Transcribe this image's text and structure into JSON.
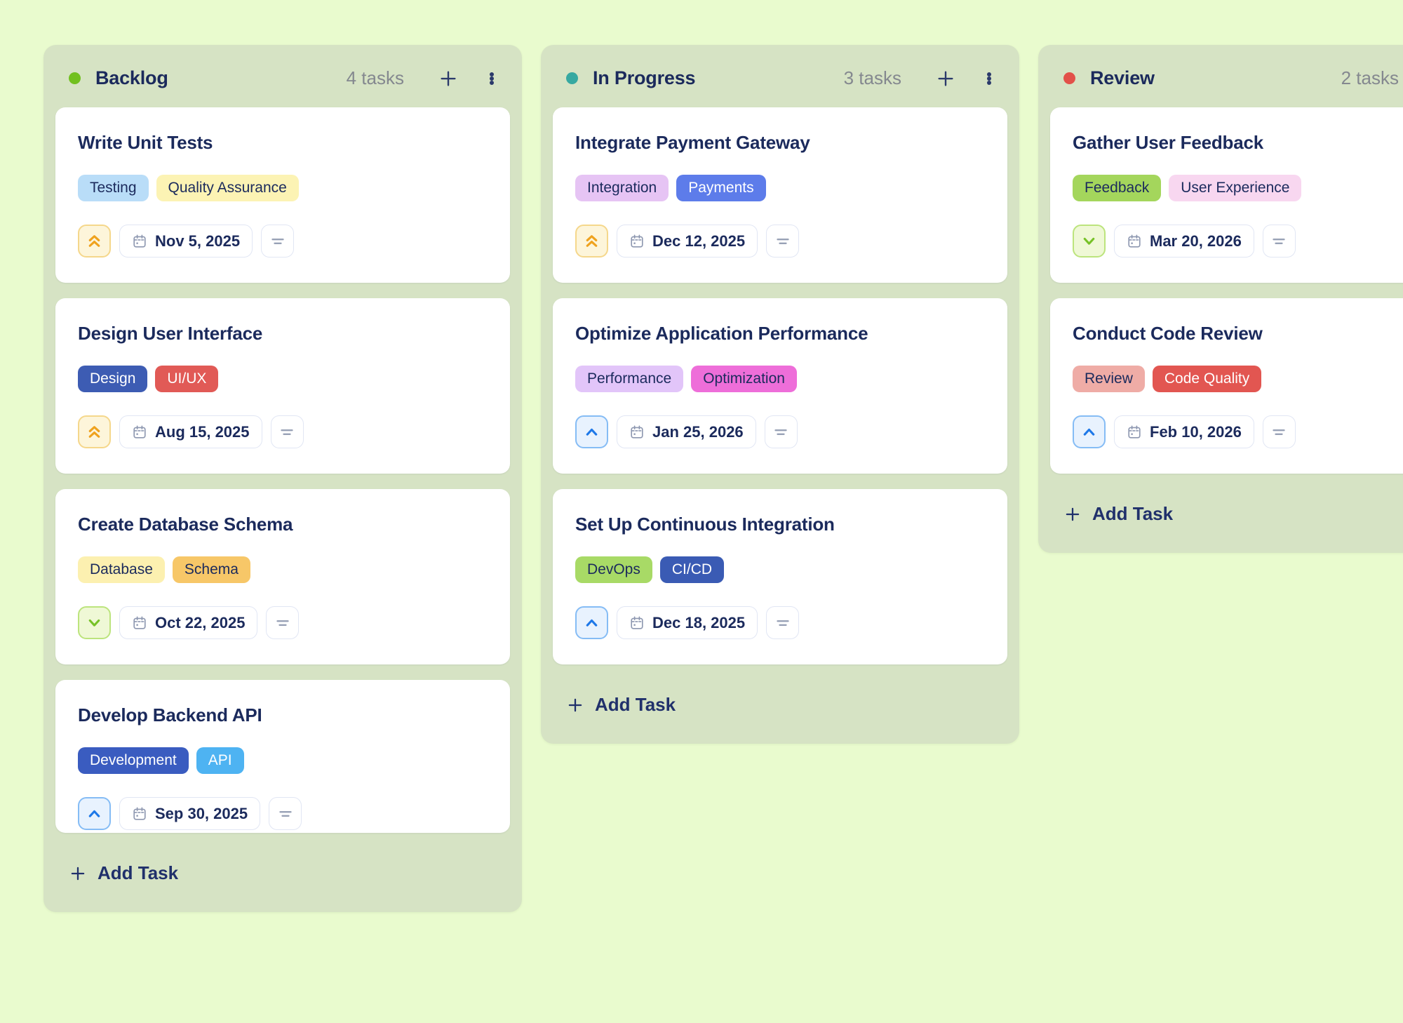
{
  "board": {
    "background": "#e9fbce",
    "column_background": "#d6e3c4",
    "text_color": "#1b2a5c",
    "count_text_color": "#84888f",
    "columns": [
      {
        "name": "Backlog",
        "count_label": "4 tasks",
        "dot_color": "#71c01f",
        "add_task_label": "Add Task",
        "tasks": [
          {
            "title": "Write Unit Tests",
            "tags": [
              {
                "label": "Testing",
                "bg": "#b9ddf8",
                "fg": "#1b2a5c"
              },
              {
                "label": "Quality Assurance",
                "bg": "#fcf3b4",
                "fg": "#1b2a5c"
              }
            ],
            "priority": "high",
            "due_date": "Nov 5, 2025"
          },
          {
            "title": "Design User Interface",
            "tags": [
              {
                "label": "Design",
                "bg": "#3d5cb3",
                "fg": "#ffffff"
              },
              {
                "label": "UI/UX",
                "bg": "#e15a56",
                "fg": "#ffffff"
              }
            ],
            "priority": "high",
            "due_date": "Aug 15, 2025"
          },
          {
            "title": "Create Database Schema",
            "tags": [
              {
                "label": "Database",
                "bg": "#fcf0b0",
                "fg": "#1b2a5c"
              },
              {
                "label": "Schema",
                "bg": "#f7c768",
                "fg": "#1b2a5c"
              }
            ],
            "priority": "low",
            "due_date": "Oct 22, 2025"
          },
          {
            "title": "Develop Backend API",
            "tags": [
              {
                "label": "Development",
                "bg": "#3a5cc0",
                "fg": "#ffffff"
              },
              {
                "label": "API",
                "bg": "#4eb3f2",
                "fg": "#ffffff"
              }
            ],
            "priority": "medium",
            "due_date": "Sep 30, 2025"
          }
        ]
      },
      {
        "name": "In Progress",
        "count_label": "3 tasks",
        "dot_color": "#37a9a1",
        "add_task_label": "Add Task",
        "tasks": [
          {
            "title": "Integrate Payment Gateway",
            "tags": [
              {
                "label": "Integration",
                "bg": "#e6c4f4",
                "fg": "#1b2a5c"
              },
              {
                "label": "Payments",
                "bg": "#5d7cea",
                "fg": "#ffffff"
              }
            ],
            "priority": "high",
            "due_date": "Dec 12, 2025"
          },
          {
            "title": "Optimize Application Performance",
            "tags": [
              {
                "label": "Performance",
                "bg": "#e2c5f9",
                "fg": "#1b2a5c"
              },
              {
                "label": "Optimization",
                "bg": "#ee6ed9",
                "fg": "#1b2a5c"
              }
            ],
            "priority": "medium",
            "due_date": "Jan 25, 2026"
          },
          {
            "title": "Set Up Continuous Integration",
            "tags": [
              {
                "label": "DevOps",
                "bg": "#a8da66",
                "fg": "#1b2a5c"
              },
              {
                "label": "CI/CD",
                "bg": "#3a5bb4",
                "fg": "#ffffff"
              }
            ],
            "priority": "medium",
            "due_date": "Dec 18, 2025"
          }
        ]
      },
      {
        "name": "Review",
        "count_label": "2 tasks",
        "dot_color": "#e25149",
        "add_task_label": "Add Task",
        "tasks": [
          {
            "title": "Gather User Feedback",
            "tags": [
              {
                "label": "Feedback",
                "bg": "#a4d65c",
                "fg": "#1b2a5c"
              },
              {
                "label": "User Experience",
                "bg": "#f8d7f0",
                "fg": "#1b2a5c"
              }
            ],
            "priority": "low",
            "due_date": "Mar 20, 2026"
          },
          {
            "title": "Conduct Code Review",
            "tags": [
              {
                "label": "Review",
                "bg": "#efaca6",
                "fg": "#1b2a5c"
              },
              {
                "label": "Code Quality",
                "bg": "#e25651",
                "fg": "#ffffff"
              }
            ],
            "priority": "medium",
            "due_date": "Feb 10, 2026"
          }
        ]
      }
    ],
    "priority_styles": {
      "high": {
        "bg": "#fdf5da",
        "border": "#f5d78b",
        "icon_color": "#efa21e",
        "icon": "chevrons-up"
      },
      "medium": {
        "bg": "#e8f2fe",
        "border": "#85bcf5",
        "icon_color": "#1e78e8",
        "icon": "chevron-up"
      },
      "low": {
        "bg": "#eff8d6",
        "border": "#bce47d",
        "icon_color": "#77c228",
        "icon": "chevron-down"
      }
    }
  }
}
